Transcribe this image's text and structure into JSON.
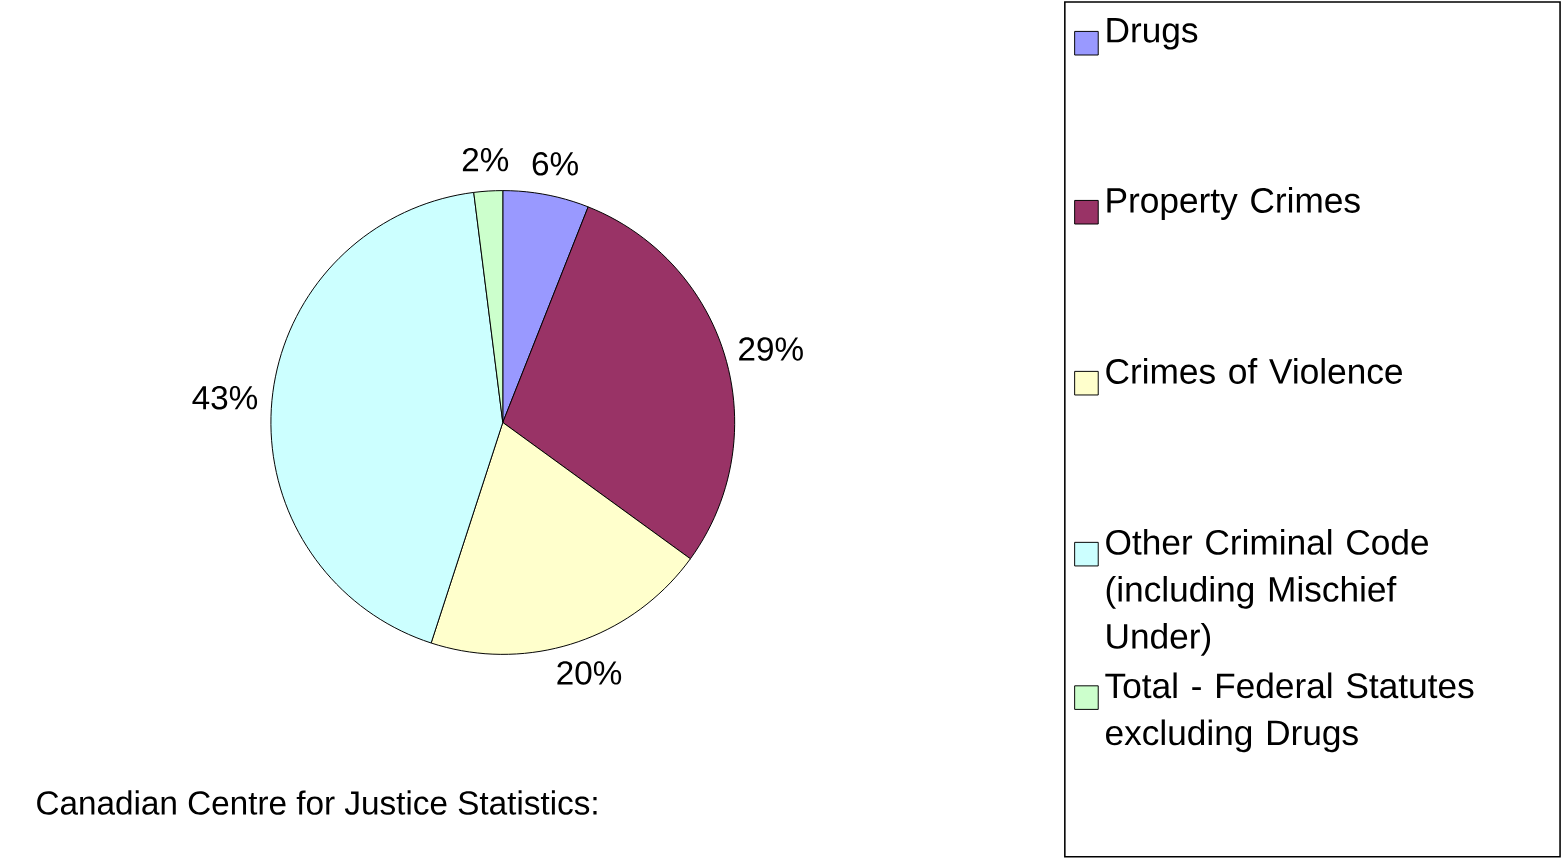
{
  "chart_data": {
    "type": "pie",
    "categories": [
      "Drugs",
      "Property Crimes",
      "Crimes of Violence",
      "Other Criminal Code (including Mischief Under)",
      "Total - Federal Statutes excluding Drugs"
    ],
    "values": [
      6,
      29,
      20,
      43,
      2
    ],
    "value_labels": [
      "6%",
      "29%",
      "20%",
      "43%",
      "2%"
    ],
    "colors": [
      "#9999ff",
      "#993366",
      "#ffffcc",
      "#ccffff",
      "#ccffcc"
    ],
    "legend": "right",
    "annotations": [
      "Canadian Centre for Justice Statistics:"
    ]
  }
}
